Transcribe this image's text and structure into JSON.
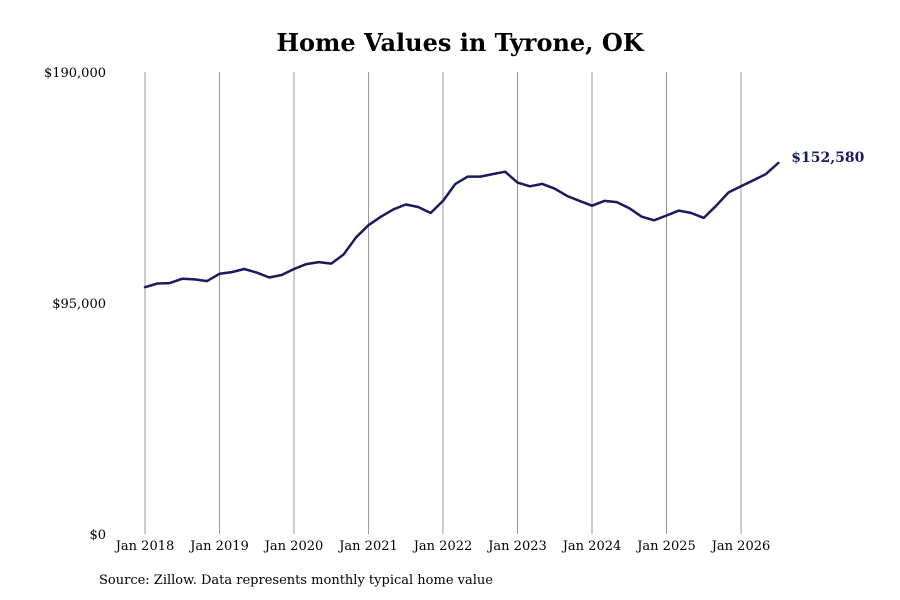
{
  "chart_data": {
    "type": "line",
    "title": "Home Values in Tyrone, OK",
    "xlabel": "",
    "ylabel": "",
    "ylim": [
      0,
      190000
    ],
    "y_ticks": [
      "$190,000",
      "$95,000",
      "$0"
    ],
    "y_tick_values": [
      190000,
      95000,
      0
    ],
    "x_ticks": [
      "Jan 2018",
      "Jan 2019",
      "Jan 2020",
      "Jan 2021",
      "Jan 2022",
      "Jan 2023",
      "Jan 2024",
      "Jan 2025",
      "Jan 2026"
    ],
    "x_range": [
      "2018-01",
      "2026-07"
    ],
    "grid": "vertical",
    "line_color": "#1a1a5e",
    "end_label": "$152,580",
    "series": [
      {
        "x": [
          "2018-01",
          "2018-03",
          "2018-05",
          "2018-07",
          "2018-09",
          "2018-11",
          "2019-01",
          "2019-03",
          "2019-05",
          "2019-07",
          "2019-09",
          "2019-11",
          "2020-01",
          "2020-03",
          "2020-05",
          "2020-07",
          "2020-09",
          "2020-11",
          "2021-01",
          "2021-03",
          "2021-05",
          "2021-07",
          "2021-09",
          "2021-11",
          "2022-01",
          "2022-03",
          "2022-05",
          "2022-07",
          "2022-09",
          "2022-11",
          "2023-01",
          "2023-03",
          "2023-05",
          "2023-07",
          "2023-09",
          "2023-11",
          "2024-01",
          "2024-03",
          "2024-05",
          "2024-07",
          "2024-09",
          "2024-11",
          "2025-01",
          "2025-03",
          "2025-05",
          "2025-07",
          "2025-09",
          "2025-11",
          "2026-01",
          "2026-03",
          "2026-05",
          "2026-07"
        ],
        "values": [
          101500,
          103000,
          103200,
          105000,
          104700,
          104000,
          107000,
          107700,
          109000,
          107500,
          105500,
          106500,
          109000,
          111000,
          111800,
          111200,
          115000,
          122000,
          127000,
          130500,
          133500,
          135500,
          134500,
          132000,
          137000,
          144000,
          147000,
          147000,
          148000,
          149000,
          144500,
          143000,
          144000,
          142000,
          139000,
          137000,
          135000,
          137000,
          136500,
          134000,
          130500,
          129000,
          131000,
          133000,
          132000,
          130000,
          135000,
          140500,
          143000,
          145500,
          148000,
          152580
        ]
      }
    ]
  },
  "source": "Source: Zillow. Data represents monthly typical home value"
}
